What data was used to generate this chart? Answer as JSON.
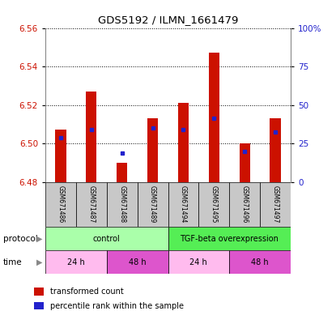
{
  "title": "GDS5192 / ILMN_1661479",
  "samples": [
    "GSM671486",
    "GSM671487",
    "GSM671488",
    "GSM671489",
    "GSM671494",
    "GSM671495",
    "GSM671496",
    "GSM671497"
  ],
  "bar_bottoms": [
    6.48,
    6.48,
    6.48,
    6.48,
    6.48,
    6.48,
    6.48,
    6.48
  ],
  "bar_tops": [
    6.507,
    6.527,
    6.49,
    6.513,
    6.521,
    6.547,
    6.5,
    6.513
  ],
  "percentile_values": [
    6.503,
    6.507,
    6.495,
    6.508,
    6.507,
    6.513,
    6.496,
    6.506
  ],
  "ylim_left": [
    6.48,
    6.56
  ],
  "ylim_right": [
    0,
    100
  ],
  "yticks_left": [
    6.48,
    6.5,
    6.52,
    6.54,
    6.56
  ],
  "yticks_right": [
    0,
    25,
    50,
    75,
    100
  ],
  "ytick_labels_right": [
    "0",
    "25",
    "50",
    "75",
    "100%"
  ],
  "bar_color": "#cc1100",
  "percentile_color": "#2222cc",
  "protocol_groups": [
    {
      "label": "control",
      "start": 0,
      "end": 4,
      "color": "#aaffaa"
    },
    {
      "label": "TGF-beta overexpression",
      "start": 4,
      "end": 8,
      "color": "#55ee55"
    }
  ],
  "time_groups": [
    {
      "label": "24 h",
      "start": 0,
      "end": 2,
      "color": "#ffbbee"
    },
    {
      "label": "48 h",
      "start": 2,
      "end": 4,
      "color": "#dd55cc"
    },
    {
      "label": "24 h",
      "start": 4,
      "end": 6,
      "color": "#ffbbee"
    },
    {
      "label": "48 h",
      "start": 6,
      "end": 8,
      "color": "#dd55cc"
    }
  ],
  "left_tick_color": "#cc1100",
  "right_tick_color": "#2222cc",
  "sample_area_color": "#c8c8c8",
  "legend_items": [
    {
      "label": "transformed count",
      "color": "#cc1100"
    },
    {
      "label": "percentile rank within the sample",
      "color": "#2222cc"
    }
  ],
  "bar_width": 0.35
}
